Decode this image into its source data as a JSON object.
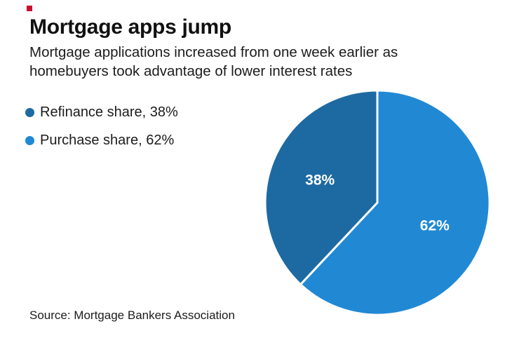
{
  "brand": {
    "accent_color": "#c8102e"
  },
  "header": {
    "title": "Mortgage apps jump",
    "subtitle_line1": "Mortgage applications increased from one week earlier as",
    "subtitle_line2": "homebuyers took advantage of lower interest rates"
  },
  "legend": {
    "items": [
      {
        "label": "Refinance share, 38%",
        "color": "#1d6aa2"
      },
      {
        "label": "Purchase share, 62%",
        "color": "#2189d4"
      }
    ]
  },
  "chart_data": {
    "type": "pie",
    "title": "Mortgage apps jump",
    "subtitle": "Mortgage applications increased from one week earlier as homebuyers took advantage of lower interest rates",
    "start_angle_deg": 0,
    "direction": "clockwise",
    "slice_label_color": "#ffffff",
    "legend_position": "left",
    "slices": [
      {
        "name": "Purchase share",
        "value": 62,
        "label": "62%",
        "color": "#2189d4"
      },
      {
        "name": "Refinance share",
        "value": 38,
        "label": "38%",
        "color": "#1d6aa2"
      }
    ]
  },
  "source": {
    "text": "Source: Mortgage Bankers Association"
  }
}
